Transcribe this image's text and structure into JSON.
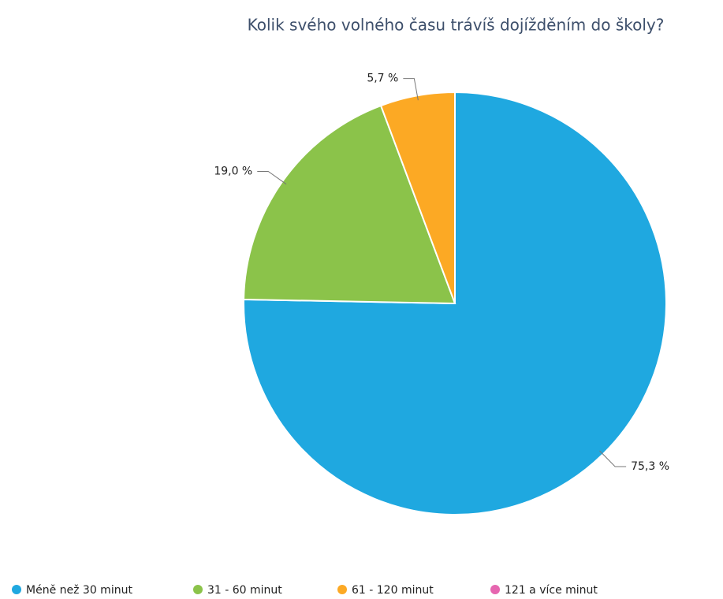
{
  "chart_data": {
    "type": "pie",
    "title": "Kolik svého volného času trávíš dojížděním do školy?",
    "categories": [
      "Méně než 30 minut",
      "31 - 60 minut",
      "61 - 120 minut",
      "121 a více minut"
    ],
    "values": [
      75.3,
      19.0,
      5.7,
      0
    ],
    "value_labels": [
      "75,3 %",
      "19,0 %",
      "5,7 %",
      null
    ],
    "colors": [
      "#1fa8e0",
      "#8bc34a",
      "#fca924",
      "#e666b0"
    ],
    "legend": "bottom"
  }
}
